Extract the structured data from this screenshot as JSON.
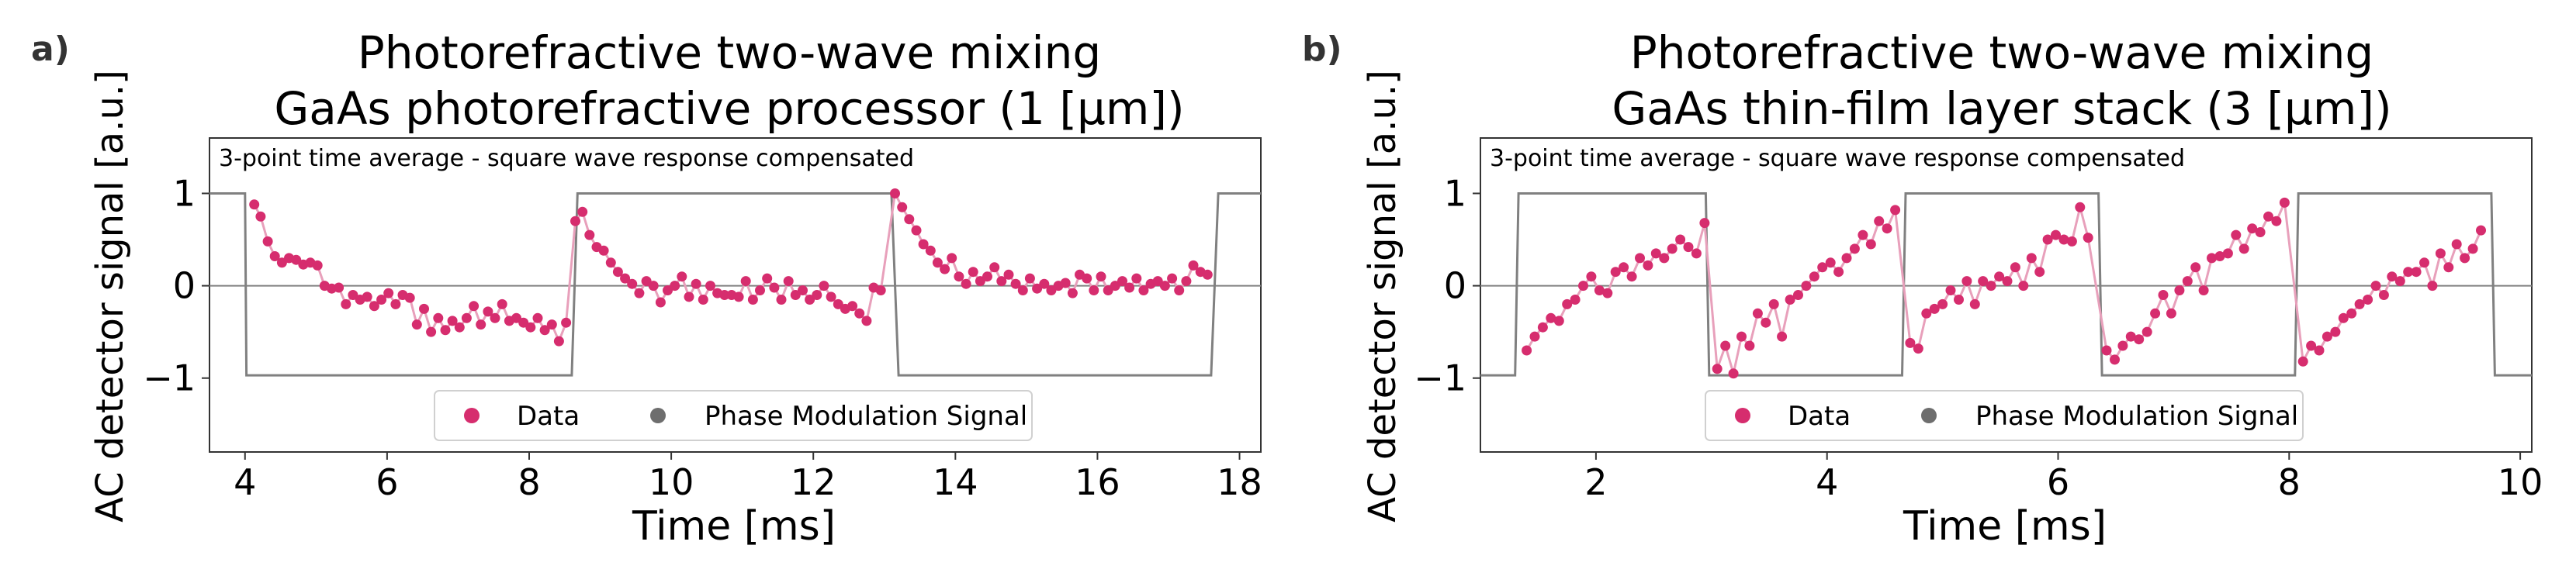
{
  "chart_data": [
    {
      "panel_label": "a)",
      "type": "scatter",
      "title_line1": "Photorefractive two-wave mixing",
      "title_line2": "GaAs photorefractive processor (1 [μm])",
      "annotation": "3-point time average - square wave response compensated",
      "xlabel": "Time [ms]",
      "ylabel": "AC detector signal [a.u.]",
      "xlim": [
        3.5,
        18.3
      ],
      "ylim": [
        -1.8,
        1.6
      ],
      "xticks": [
        4,
        6,
        8,
        10,
        12,
        14,
        16,
        18
      ],
      "yticks": [
        -1,
        0,
        1
      ],
      "xtick_labels": [
        "4",
        "6",
        "8",
        "10",
        "12",
        "14",
        "16",
        "18"
      ],
      "ytick_labels": [
        "−1",
        "0",
        "1"
      ],
      "legend": [
        "Data",
        "Phase Modulation Signal"
      ],
      "legend_position": "lower-center",
      "colors": {
        "data": "#d62d6e",
        "data_line": "#e8a0bb",
        "modulation": "#808080",
        "zero_line": "#808080"
      },
      "modulation": [
        [
          3.5,
          1.0
        ],
        [
          4.0,
          1.0
        ],
        [
          4.02,
          -0.97
        ],
        [
          8.6,
          -0.97
        ],
        [
          8.68,
          1.0
        ],
        [
          13.1,
          1.0
        ],
        [
          13.2,
          -0.97
        ],
        [
          17.6,
          -0.97
        ],
        [
          17.7,
          1.0
        ],
        [
          18.3,
          1.0
        ]
      ],
      "series": [
        {
          "name": "Data",
          "x": [
            4.13,
            4.22,
            4.32,
            4.42,
            4.52,
            4.62,
            4.72,
            4.82,
            4.92,
            5.02,
            5.12,
            5.22,
            5.32,
            5.42,
            5.52,
            5.62,
            5.72,
            5.82,
            5.92,
            6.02,
            6.12,
            6.22,
            6.32,
            6.42,
            6.52,
            6.62,
            6.72,
            6.82,
            6.92,
            7.02,
            7.12,
            7.22,
            7.32,
            7.42,
            7.52,
            7.62,
            7.72,
            7.82,
            7.92,
            8.02,
            8.12,
            8.22,
            8.32,
            8.42,
            8.52,
            8.65,
            8.75,
            8.85,
            8.95,
            9.05,
            9.15,
            9.25,
            9.35,
            9.45,
            9.55,
            9.65,
            9.75,
            9.85,
            9.95,
            10.05,
            10.15,
            10.25,
            10.35,
            10.45,
            10.55,
            10.65,
            10.75,
            10.85,
            10.95,
            11.05,
            11.15,
            11.25,
            11.35,
            11.45,
            11.55,
            11.65,
            11.75,
            11.85,
            11.95,
            12.05,
            12.15,
            12.25,
            12.35,
            12.45,
            12.55,
            12.65,
            12.75,
            12.85,
            12.95,
            13.15,
            13.25,
            13.35,
            13.45,
            13.55,
            13.65,
            13.75,
            13.85,
            13.95,
            14.05,
            14.15,
            14.25,
            14.35,
            14.45,
            14.55,
            14.65,
            14.75,
            14.85,
            14.95,
            15.05,
            15.15,
            15.25,
            15.35,
            15.45,
            15.55,
            15.65,
            15.75,
            15.85,
            15.95,
            16.05,
            16.15,
            16.25,
            16.35,
            16.45,
            16.55,
            16.65,
            16.75,
            16.85,
            16.95,
            17.05,
            17.15,
            17.25,
            17.35,
            17.45,
            17.55
          ],
          "y": [
            0.88,
            0.75,
            0.48,
            0.32,
            0.25,
            0.3,
            0.28,
            0.23,
            0.25,
            0.22,
            0.0,
            -0.03,
            -0.02,
            -0.2,
            -0.1,
            -0.15,
            -0.12,
            -0.22,
            -0.15,
            -0.08,
            -0.2,
            -0.1,
            -0.13,
            -0.42,
            -0.25,
            -0.5,
            -0.35,
            -0.48,
            -0.38,
            -0.45,
            -0.35,
            -0.22,
            -0.42,
            -0.28,
            -0.35,
            -0.2,
            -0.38,
            -0.35,
            -0.4,
            -0.45,
            -0.35,
            -0.48,
            -0.42,
            -0.6,
            -0.4,
            0.7,
            0.8,
            0.55,
            0.42,
            0.38,
            0.25,
            0.15,
            0.08,
            0.02,
            -0.08,
            0.05,
            0.0,
            -0.18,
            -0.05,
            0.0,
            0.1,
            -0.12,
            0.02,
            -0.15,
            0.0,
            -0.08,
            -0.1,
            -0.1,
            -0.12,
            0.05,
            -0.15,
            -0.05,
            0.08,
            -0.02,
            -0.15,
            0.05,
            -0.1,
            -0.05,
            -0.15,
            -0.1,
            0.0,
            -0.12,
            -0.2,
            -0.25,
            -0.22,
            -0.3,
            -0.38,
            -0.02,
            -0.05,
            1.0,
            0.85,
            0.72,
            0.6,
            0.45,
            0.38,
            0.25,
            0.18,
            0.3,
            0.1,
            0.02,
            0.15,
            0.05,
            0.1,
            0.2,
            0.05,
            0.12,
            0.02,
            -0.05,
            0.08,
            -0.03,
            0.02,
            -0.05,
            0.0,
            0.03,
            -0.08,
            0.12,
            0.08,
            -0.05,
            0.1,
            -0.05,
            0.0,
            0.05,
            -0.02,
            0.08,
            -0.05,
            0.02,
            0.05,
            0.0,
            0.08,
            -0.05,
            0.05,
            0.22,
            0.15,
            0.12
          ]
        },
        {
          "name": "Phase Modulation Signal"
        }
      ]
    },
    {
      "panel_label": "b)",
      "type": "scatter",
      "title_line1": "Photorefractive two-wave mixing",
      "title_line2": "GaAs thin-film layer stack (3 [μm])",
      "annotation": "3-point time average - square wave response compensated",
      "xlabel": "Time [ms]",
      "ylabel": "AC detector signal [a.u.]",
      "xlim": [
        1.0,
        10.1
      ],
      "ylim": [
        -1.8,
        1.6
      ],
      "xticks": [
        2,
        4,
        6,
        8,
        10
      ],
      "yticks": [
        -1,
        0,
        1
      ],
      "xtick_labels": [
        "2",
        "4",
        "6",
        "8",
        "10"
      ],
      "ytick_labels": [
        "−1",
        "0",
        "1"
      ],
      "legend": [
        "Data",
        "Phase Modulation Signal"
      ],
      "legend_position": "lower-center",
      "colors": {
        "data": "#d62d6e",
        "data_line": "#e8a0bb",
        "modulation": "#808080",
        "zero_line": "#808080"
      },
      "modulation": [
        [
          1.0,
          -0.97
        ],
        [
          1.3,
          -0.97
        ],
        [
          1.33,
          1.0
        ],
        [
          2.95,
          1.0
        ],
        [
          2.98,
          -0.97
        ],
        [
          4.65,
          -0.97
        ],
        [
          4.68,
          1.0
        ],
        [
          6.35,
          1.0
        ],
        [
          6.38,
          -0.97
        ],
        [
          8.05,
          -0.97
        ],
        [
          8.08,
          1.0
        ],
        [
          9.75,
          1.0
        ],
        [
          9.78,
          -0.97
        ],
        [
          10.1,
          -0.97
        ]
      ],
      "series": [
        {
          "name": "Data",
          "x": [
            1.4,
            1.47,
            1.54,
            1.61,
            1.68,
            1.75,
            1.82,
            1.89,
            1.96,
            2.03,
            2.1,
            2.17,
            2.24,
            2.31,
            2.38,
            2.45,
            2.52,
            2.59,
            2.66,
            2.73,
            2.8,
            2.87,
            2.94,
            3.05,
            3.12,
            3.19,
            3.26,
            3.33,
            3.4,
            3.47,
            3.54,
            3.61,
            3.68,
            3.75,
            3.82,
            3.89,
            3.96,
            4.03,
            4.1,
            4.17,
            4.24,
            4.31,
            4.38,
            4.45,
            4.52,
            4.59,
            4.72,
            4.79,
            4.86,
            4.93,
            5.0,
            5.07,
            5.14,
            5.21,
            5.28,
            5.35,
            5.42,
            5.49,
            5.56,
            5.63,
            5.7,
            5.77,
            5.84,
            5.91,
            5.98,
            6.05,
            6.12,
            6.19,
            6.26,
            6.42,
            6.49,
            6.56,
            6.63,
            6.7,
            6.77,
            6.84,
            6.91,
            6.98,
            7.05,
            7.12,
            7.19,
            7.26,
            7.33,
            7.4,
            7.47,
            7.54,
            7.61,
            7.68,
            7.75,
            7.82,
            7.89,
            7.96,
            8.12,
            8.19,
            8.26,
            8.33,
            8.4,
            8.47,
            8.54,
            8.61,
            8.68,
            8.75,
            8.82,
            8.89,
            8.96,
            9.03,
            9.1,
            9.17,
            9.24,
            9.31,
            9.38,
            9.45,
            9.52,
            9.59,
            9.66
          ],
          "y": [
            -0.7,
            -0.55,
            -0.45,
            -0.35,
            -0.38,
            -0.2,
            -0.15,
            0.0,
            0.1,
            -0.05,
            -0.08,
            0.15,
            0.2,
            0.1,
            0.3,
            0.22,
            0.35,
            0.3,
            0.4,
            0.5,
            0.42,
            0.35,
            0.68,
            -0.9,
            -0.65,
            -0.95,
            -0.55,
            -0.65,
            -0.3,
            -0.4,
            -0.2,
            -0.55,
            -0.15,
            -0.1,
            0.0,
            0.1,
            0.2,
            0.25,
            0.15,
            0.3,
            0.4,
            0.55,
            0.45,
            0.7,
            0.62,
            0.82,
            -0.62,
            -0.68,
            -0.3,
            -0.25,
            -0.2,
            -0.05,
            -0.15,
            0.05,
            -0.2,
            0.05,
            0.0,
            0.1,
            0.05,
            0.2,
            0.0,
            0.3,
            0.15,
            0.5,
            0.55,
            0.5,
            0.48,
            0.85,
            0.52,
            -0.7,
            -0.8,
            -0.65,
            -0.55,
            -0.58,
            -0.5,
            -0.3,
            -0.1,
            -0.3,
            -0.05,
            0.05,
            0.2,
            -0.05,
            0.3,
            0.32,
            0.35,
            0.55,
            0.4,
            0.62,
            0.58,
            0.75,
            0.7,
            0.9,
            -0.82,
            -0.65,
            -0.7,
            -0.55,
            -0.5,
            -0.35,
            -0.3,
            -0.2,
            -0.15,
            0.0,
            -0.1,
            0.1,
            0.05,
            0.15,
            0.15,
            0.25,
            0.0,
            0.35,
            0.2,
            0.45,
            0.3,
            0.4,
            0.6
          ]
        },
        {
          "name": "Phase Modulation Signal"
        }
      ]
    }
  ]
}
